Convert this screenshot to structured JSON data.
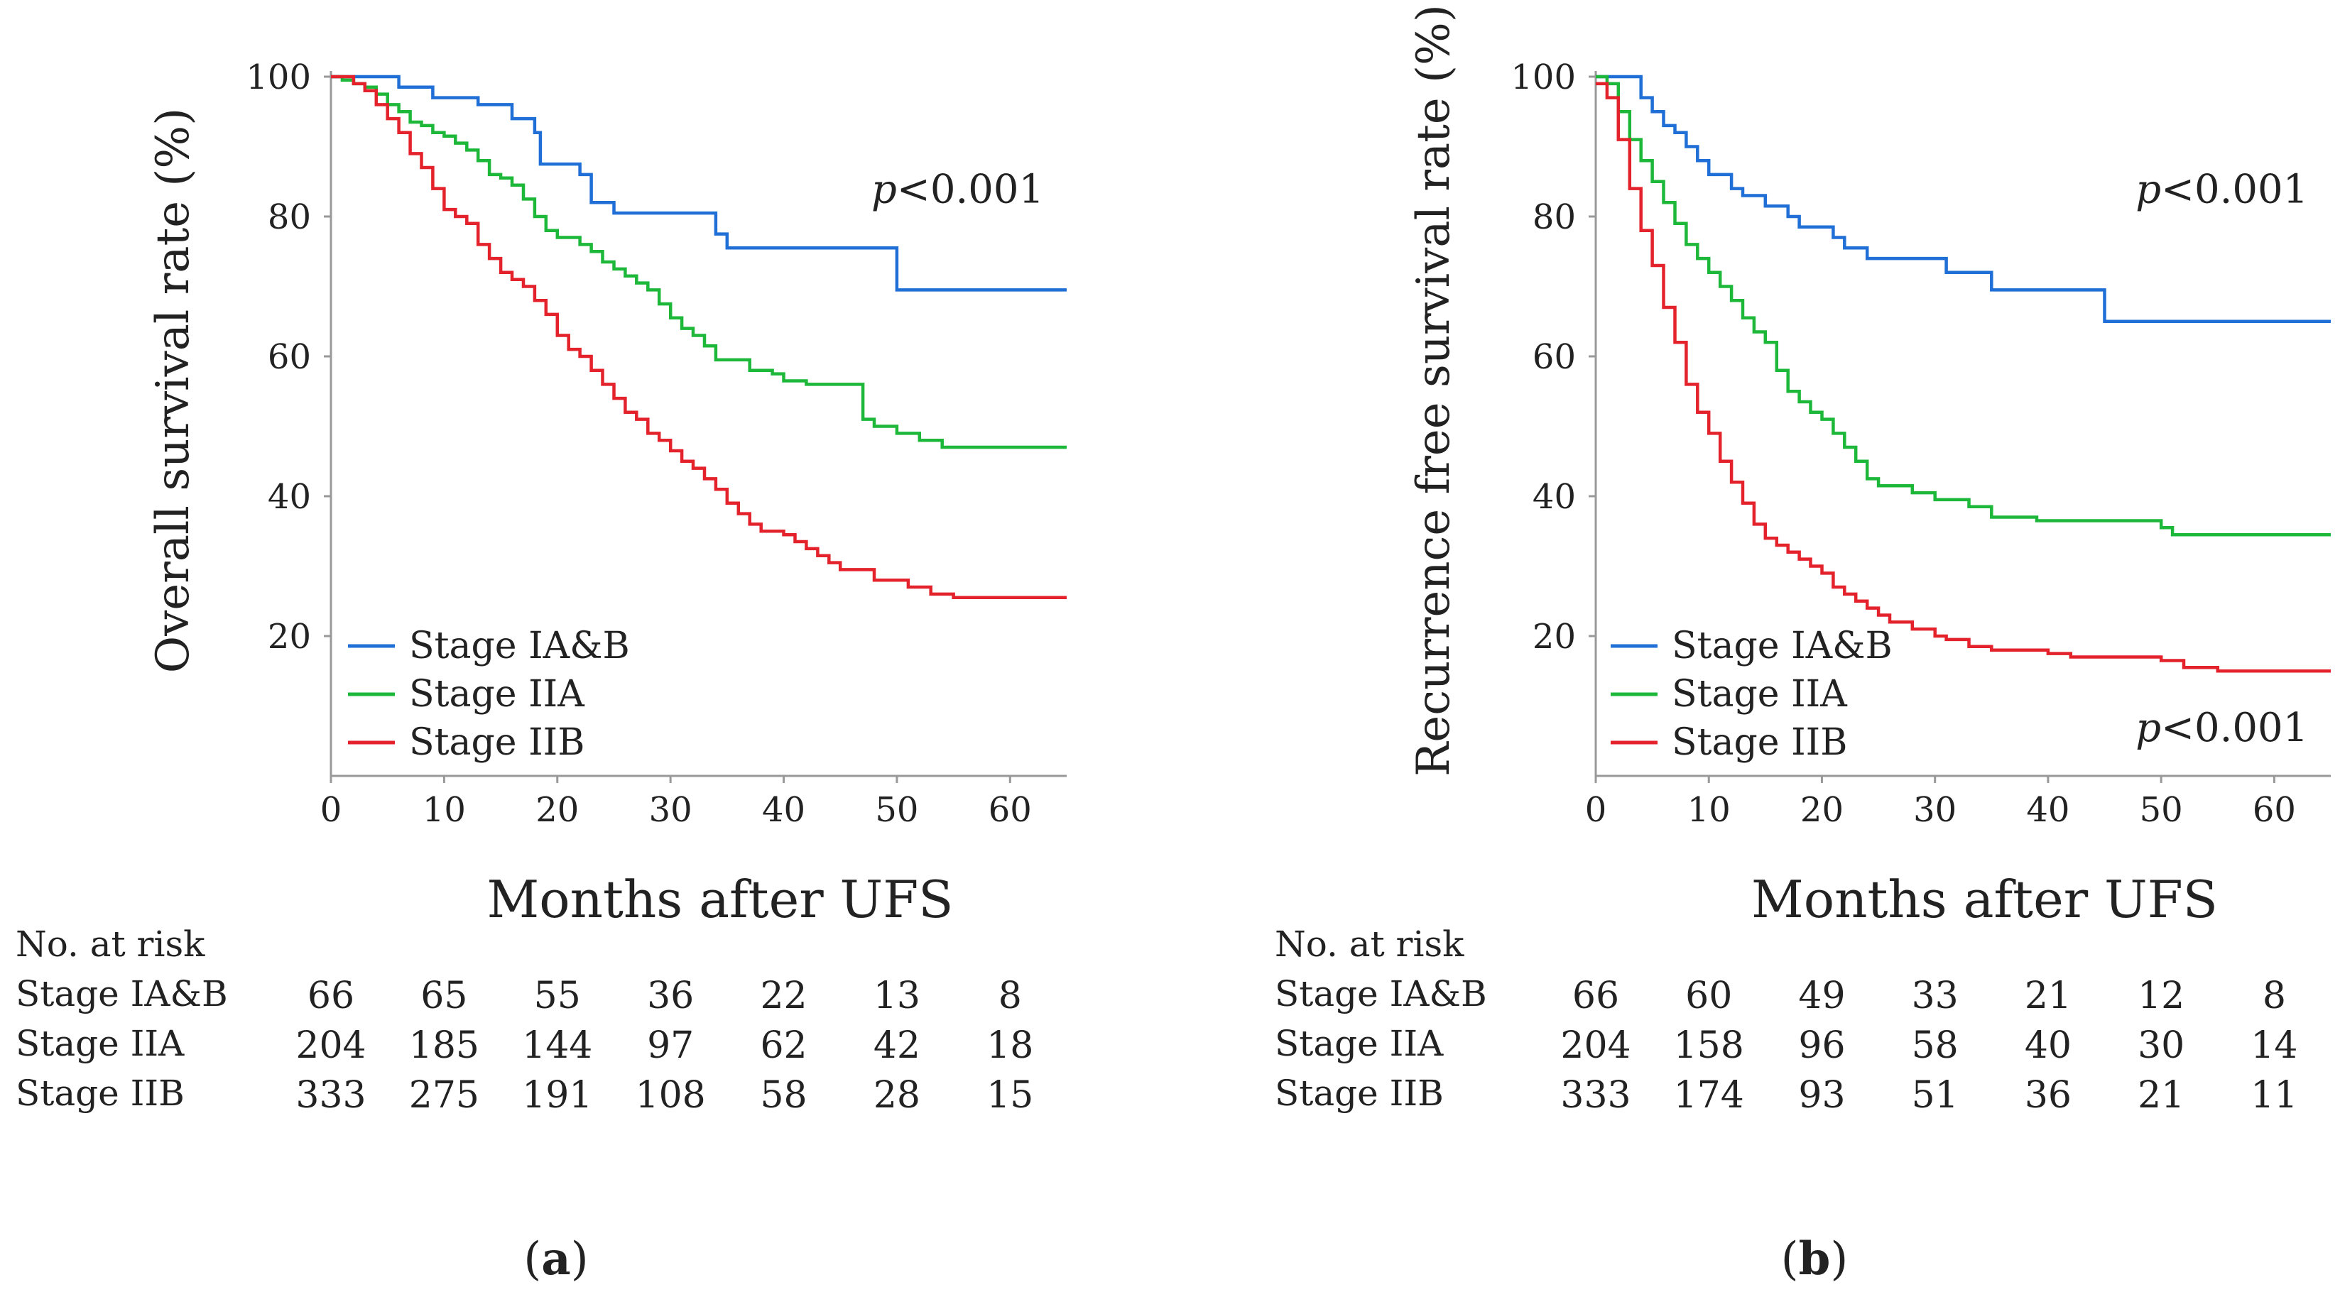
{
  "chart_data": [
    {
      "panel_label": "a",
      "type": "line",
      "step": true,
      "ylabel": "Overall survival rate (%)",
      "xlabel": "Months after UFS",
      "xlim": [
        0,
        65
      ],
      "ylim": [
        0,
        100
      ],
      "xticks": [
        0,
        10,
        20,
        30,
        40,
        50,
        60
      ],
      "yticks": [
        20,
        40,
        60,
        80,
        100
      ],
      "pvalues": [
        {
          "italic": "p",
          "rest": "<0.001",
          "x": 55,
          "y": 84
        }
      ],
      "legend": {
        "position": "bottom-left"
      },
      "series": [
        {
          "name": "Stage IA&B",
          "color": "#1f6fd6",
          "points": [
            [
              0,
              100
            ],
            [
              3,
              100
            ],
            [
              6,
              98.5
            ],
            [
              9,
              97
            ],
            [
              13,
              96
            ],
            [
              16,
              94
            ],
            [
              18,
              92
            ],
            [
              18.5,
              87.5
            ],
            [
              22,
              86
            ],
            [
              23,
              82
            ],
            [
              25,
              80.5
            ],
            [
              34,
              77.5
            ],
            [
              35,
              75.5
            ],
            [
              50,
              75.5
            ],
            [
              50,
              69.5
            ],
            [
              65,
              69.5
            ]
          ]
        },
        {
          "name": "Stage IIA",
          "color": "#1db83a",
          "points": [
            [
              0,
              100
            ],
            [
              1,
              99.5
            ],
            [
              2,
              99
            ],
            [
              3,
              98.5
            ],
            [
              4,
              97.5
            ],
            [
              5,
              96
            ],
            [
              6,
              95
            ],
            [
              7,
              93.5
            ],
            [
              8,
              93
            ],
            [
              9,
              92
            ],
            [
              10,
              91.5
            ],
            [
              11,
              90.5
            ],
            [
              12,
              89.5
            ],
            [
              13,
              88
            ],
            [
              14,
              86
            ],
            [
              15,
              85.5
            ],
            [
              16,
              84.5
            ],
            [
              17,
              82.5
            ],
            [
              18,
              80
            ],
            [
              19,
              78
            ],
            [
              20,
              77
            ],
            [
              22,
              76
            ],
            [
              23,
              75
            ],
            [
              24,
              73.5
            ],
            [
              25,
              72.5
            ],
            [
              26,
              71.5
            ],
            [
              27,
              70.5
            ],
            [
              28,
              69.5
            ],
            [
              29,
              67.5
            ],
            [
              30,
              65.5
            ],
            [
              31,
              64
            ],
            [
              32,
              63
            ],
            [
              33,
              61.5
            ],
            [
              34,
              59.5
            ],
            [
              36,
              59.5
            ],
            [
              37,
              58
            ],
            [
              39,
              57.5
            ],
            [
              40,
              56.5
            ],
            [
              42,
              56
            ],
            [
              46,
              56
            ],
            [
              47,
              51
            ],
            [
              48,
              50
            ],
            [
              50,
              49
            ],
            [
              52,
              48
            ],
            [
              54,
              47
            ],
            [
              65,
              47
            ]
          ]
        },
        {
          "name": "Stage IIB",
          "color": "#e3222b",
          "points": [
            [
              0,
              100
            ],
            [
              2,
              99
            ],
            [
              3,
              98
            ],
            [
              4,
              96
            ],
            [
              5,
              94
            ],
            [
              6,
              92
            ],
            [
              7,
              89
            ],
            [
              8,
              87
            ],
            [
              9,
              84
            ],
            [
              10,
              81
            ],
            [
              11,
              80
            ],
            [
              12,
              79
            ],
            [
              13,
              76
            ],
            [
              14,
              74
            ],
            [
              15,
              72
            ],
            [
              16,
              71
            ],
            [
              17,
              70
            ],
            [
              18,
              68
            ],
            [
              19,
              66
            ],
            [
              20,
              63
            ],
            [
              21,
              61
            ],
            [
              22,
              60
            ],
            [
              23,
              58
            ],
            [
              24,
              56
            ],
            [
              25,
              54
            ],
            [
              26,
              52
            ],
            [
              27,
              51
            ],
            [
              28,
              49
            ],
            [
              29,
              48
            ],
            [
              30,
              46.5
            ],
            [
              31,
              45
            ],
            [
              32,
              44
            ],
            [
              33,
              42.5
            ],
            [
              34,
              41
            ],
            [
              35,
              39
            ],
            [
              36,
              37.5
            ],
            [
              37,
              36
            ],
            [
              38,
              35
            ],
            [
              40,
              34.5
            ],
            [
              41,
              33.5
            ],
            [
              42,
              32.5
            ],
            [
              43,
              31.5
            ],
            [
              44,
              30.5
            ],
            [
              45,
              29.5
            ],
            [
              48,
              28
            ],
            [
              51,
              27
            ],
            [
              53,
              26
            ],
            [
              55,
              25.5
            ],
            [
              65,
              25.5
            ]
          ]
        }
      ],
      "risk_table": {
        "title": "No. at risk",
        "times": [
          0,
          10,
          20,
          30,
          40,
          50,
          60
        ],
        "rows": [
          {
            "label": "Stage IA&B",
            "values": [
              "66",
              "65",
              "55",
              "36",
              "22",
              "13",
              "8"
            ]
          },
          {
            "label": "Stage IIA",
            "values": [
              "204",
              "185",
              "144",
              "97",
              "62",
              "42",
              "18"
            ]
          },
          {
            "label": "Stage IIB",
            "values": [
              "333",
              "275",
              "191",
              "108",
              "58",
              "28",
              "15"
            ]
          }
        ]
      }
    },
    {
      "panel_label": "b",
      "type": "line",
      "step": true,
      "ylabel": "Recurrence free survival rate (%)",
      "xlabel": "Months after UFS",
      "xlim": [
        0,
        65
      ],
      "ylim": [
        0,
        100
      ],
      "xticks": [
        0,
        10,
        20,
        30,
        40,
        50,
        60
      ],
      "yticks": [
        20,
        40,
        60,
        80,
        100
      ],
      "pvalues": [
        {
          "italic": "p",
          "rest": "<0.001",
          "x": 55,
          "y": 84
        },
        {
          "italic": "p",
          "rest": "<0.001",
          "x": 55,
          "y": 7
        }
      ],
      "legend": {
        "position": "bottom-left"
      },
      "series": [
        {
          "name": "Stage IA&B",
          "color": "#1f6fd6",
          "points": [
            [
              0,
              100
            ],
            [
              2,
              100
            ],
            [
              3,
              100
            ],
            [
              4,
              97
            ],
            [
              5,
              95
            ],
            [
              6,
              93
            ],
            [
              7,
              92
            ],
            [
              8,
              90
            ],
            [
              9,
              88
            ],
            [
              10,
              86
            ],
            [
              12,
              84
            ],
            [
              13,
              83
            ],
            [
              15,
              81.5
            ],
            [
              17,
              80
            ],
            [
              18,
              78.5
            ],
            [
              21,
              77
            ],
            [
              22,
              75.5
            ],
            [
              24,
              74
            ],
            [
              31,
              72
            ],
            [
              35,
              69.5
            ],
            [
              45,
              67
            ],
            [
              45,
              65
            ],
            [
              65,
              65
            ]
          ]
        },
        {
          "name": "Stage IIA",
          "color": "#1db83a",
          "points": [
            [
              0,
              100
            ],
            [
              1,
              99
            ],
            [
              2,
              95
            ],
            [
              3,
              91
            ],
            [
              4,
              88
            ],
            [
              5,
              85
            ],
            [
              6,
              82
            ],
            [
              7,
              79
            ],
            [
              8,
              76
            ],
            [
              9,
              74
            ],
            [
              10,
              72
            ],
            [
              11,
              70
            ],
            [
              12,
              68
            ],
            [
              13,
              65.5
            ],
            [
              14,
              63.5
            ],
            [
              15,
              62
            ],
            [
              16,
              58
            ],
            [
              17,
              55
            ],
            [
              18,
              53.5
            ],
            [
              19,
              52
            ],
            [
              20,
              51
            ],
            [
              21,
              49
            ],
            [
              22,
              47
            ],
            [
              23,
              45
            ],
            [
              24,
              42.5
            ],
            [
              25,
              41.5
            ],
            [
              28,
              40.5
            ],
            [
              30,
              39.5
            ],
            [
              33,
              38.5
            ],
            [
              35,
              37
            ],
            [
              39,
              36.5
            ],
            [
              50,
              35.5
            ],
            [
              51,
              34.5
            ],
            [
              65,
              34.5
            ]
          ]
        },
        {
          "name": "Stage IIB",
          "color": "#e3222b",
          "points": [
            [
              0,
              99
            ],
            [
              1,
              97
            ],
            [
              2,
              91
            ],
            [
              3,
              84
            ],
            [
              4,
              78
            ],
            [
              5,
              73
            ],
            [
              6,
              67
            ],
            [
              7,
              62
            ],
            [
              8,
              56
            ],
            [
              9,
              52
            ],
            [
              10,
              49
            ],
            [
              11,
              45
            ],
            [
              12,
              42
            ],
            [
              13,
              39
            ],
            [
              14,
              36
            ],
            [
              15,
              34
            ],
            [
              16,
              33
            ],
            [
              17,
              32
            ],
            [
              18,
              31
            ],
            [
              19,
              30
            ],
            [
              20,
              29
            ],
            [
              21,
              27
            ],
            [
              22,
              26
            ],
            [
              23,
              25
            ],
            [
              24,
              24
            ],
            [
              25,
              23
            ],
            [
              26,
              22
            ],
            [
              28,
              21
            ],
            [
              30,
              20
            ],
            [
              31,
              19.5
            ],
            [
              33,
              18.5
            ],
            [
              35,
              18
            ],
            [
              40,
              17.5
            ],
            [
              42,
              17
            ],
            [
              50,
              16.5
            ],
            [
              52,
              15.5
            ],
            [
              55,
              15
            ],
            [
              65,
              15
            ]
          ]
        }
      ],
      "risk_table": {
        "title": "No. at risk",
        "times": [
          0,
          10,
          20,
          30,
          40,
          50,
          60
        ],
        "rows": [
          {
            "label": "Stage IA&B",
            "values": [
              "66",
              "60",
              "49",
              "33",
              "21",
              "12",
              "8"
            ]
          },
          {
            "label": "Stage IIA",
            "values": [
              "204",
              "158",
              "96",
              "58",
              "40",
              "30",
              "14"
            ]
          },
          {
            "label": "Stage IIB",
            "values": [
              "333",
              "174",
              "93",
              "51",
              "36",
              "21",
              "11"
            ]
          }
        ]
      }
    }
  ]
}
